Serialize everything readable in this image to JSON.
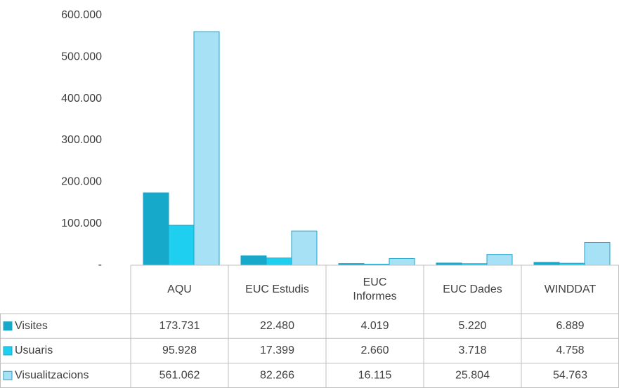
{
  "chart_data": {
    "type": "bar",
    "categories": [
      "AQU",
      "EUC Estudis",
      "EUC Informes",
      "EUC Dades",
      "WINDDAT"
    ],
    "series": [
      {
        "name": "Visites",
        "color": "#17a9c9",
        "values": [
          173731,
          22480,
          4019,
          5220,
          6889
        ],
        "value_labels": [
          "173.731",
          "22.480",
          "4.019",
          "5.220",
          "6.889"
        ]
      },
      {
        "name": "Usuaris",
        "color": "#1ecff0",
        "values": [
          95928,
          17399,
          2660,
          3718,
          4758
        ],
        "value_labels": [
          "95.928",
          "17.399",
          "2.660",
          "3.718",
          "4.758"
        ]
      },
      {
        "name": "Visualitzacions",
        "color": "#a6e1f6",
        "values": [
          561062,
          82266,
          16115,
          25804,
          54763
        ],
        "value_labels": [
          "561.062",
          "82.266",
          "16.115",
          "25.804",
          "54.763"
        ]
      }
    ],
    "ylim": [
      0,
      600000
    ],
    "yticks": [
      {
        "value": 0,
        "label": "-"
      },
      {
        "value": 100000,
        "label": "100.000"
      },
      {
        "value": 200000,
        "label": "200.000"
      },
      {
        "value": 300000,
        "label": "300.000"
      },
      {
        "value": 400000,
        "label": "400.000"
      },
      {
        "value": 500000,
        "label": "500.000"
      },
      {
        "value": 600000,
        "label": "600.000"
      }
    ],
    "grid": false
  }
}
